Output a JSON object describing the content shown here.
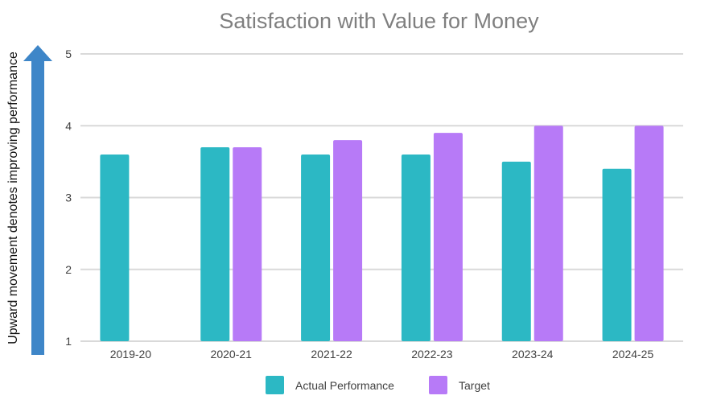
{
  "chart_data": {
    "type": "bar",
    "title": "Satisfaction with Value for Money",
    "xlabel": "",
    "ylabel": "",
    "categories": [
      "2019-20",
      "2020-21",
      "2021-22",
      "2022-23",
      "2023-24",
      "2024-25"
    ],
    "series": [
      {
        "name": "Actual Performance",
        "color": "#2cb8c4",
        "values": [
          3.6,
          3.7,
          3.6,
          3.6,
          3.5,
          3.4
        ]
      },
      {
        "name": "Target",
        "color": "#b77af7",
        "values": [
          null,
          3.7,
          3.8,
          3.9,
          4.0,
          4.0
        ]
      }
    ],
    "ylim": [
      1,
      5
    ],
    "yticks": [
      1,
      2,
      3,
      4,
      5
    ],
    "grid": true,
    "legend": "bottom",
    "annotation": {
      "text": "Upward movement denotes improving performance",
      "color": "#3e86c8",
      "icon": "up-arrow-icon"
    }
  }
}
